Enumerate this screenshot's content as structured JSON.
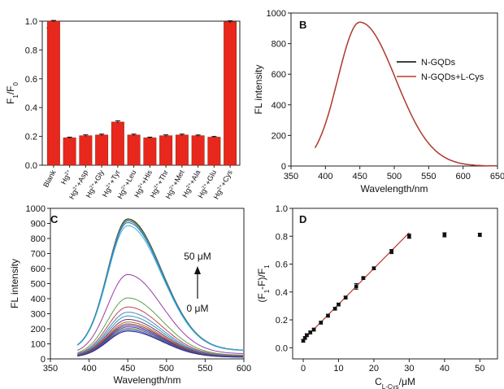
{
  "chart_data": [
    {
      "panel": "A",
      "type": "bar",
      "xlabel": "",
      "ylabel": {
        "F": "F",
        "sub1": "1",
        "slash": "/F",
        "sub2": "0"
      },
      "ylim": [
        0,
        1.0
      ],
      "yticks": [
        "0.0",
        "0.2",
        "0.4",
        "0.6",
        "0.8",
        "1.0"
      ],
      "bar_color": "#e8281c",
      "categories": [
        [
          "Blank",
          ""
        ],
        [
          "Hg",
          "2+"
        ],
        [
          "Hg",
          "2+",
          "+Asp"
        ],
        [
          "Hg",
          "2+",
          "+Gly"
        ],
        [
          "Hg",
          "2+",
          "+Tyr"
        ],
        [
          "Hg",
          "2+",
          "+Leu"
        ],
        [
          "Hg",
          "2+",
          "+His"
        ],
        [
          "Hg",
          "2+",
          "+Thr"
        ],
        [
          "Hg",
          "2+",
          "+Met"
        ],
        [
          "Hg",
          "2+",
          "+Ala"
        ],
        [
          "Hg",
          "2+",
          "+Glu"
        ],
        [
          "Hg",
          "2+",
          "+Cys"
        ]
      ],
      "values": [
        1.0,
        0.19,
        0.205,
        0.21,
        0.3,
        0.21,
        0.19,
        0.205,
        0.21,
        0.205,
        0.195,
        0.995
      ],
      "errors": [
        0.005,
        0.005,
        0.006,
        0.006,
        0.008,
        0.006,
        0.005,
        0.006,
        0.006,
        0.005,
        0.005,
        0.008
      ]
    },
    {
      "panel": "B",
      "type": "line",
      "xlabel": "Wavelength/nm",
      "ylabel": "FL intensity",
      "xlim": [
        350,
        650
      ],
      "ylim": [
        0,
        1000
      ],
      "xticks": [
        "350",
        "400",
        "450",
        "500",
        "550",
        "600",
        "650"
      ],
      "yticks": [
        "0",
        "200",
        "400",
        "600",
        "800",
        "1000"
      ],
      "series": [
        {
          "name": "N-GQDs",
          "color": "#000000",
          "peak_x": 450,
          "peak_y": 940
        },
        {
          "name": "N-GQDs+L-Cys",
          "color": "#c0392b",
          "peak_x": 450,
          "peak_y": 940
        }
      ],
      "x_start": 385
    },
    {
      "panel": "C",
      "type": "line",
      "xlabel": "Wavelength/nm",
      "ylabel": "FL intensity",
      "xlim": [
        350,
        600
      ],
      "ylim": [
        0,
        1000
      ],
      "xticks": [
        "350",
        "400",
        "450",
        "500",
        "550",
        "600"
      ],
      "yticks": [
        "0",
        "100",
        "200",
        "300",
        "400",
        "500",
        "600",
        "700",
        "800",
        "900",
        "1000"
      ],
      "annotation_top": "50 μM",
      "annotation_bottom": "0 μM",
      "peak_x": 450,
      "x_start": 385,
      "series": [
        {
          "peak": 930,
          "color": "#222222"
        },
        {
          "peak": 922,
          "color": "#7f7f2a"
        },
        {
          "peak": 915,
          "color": "#3aa0a0"
        },
        {
          "peak": 905,
          "color": "#2f6fd0"
        },
        {
          "peak": 885,
          "color": "#38b6e0"
        },
        {
          "peak": 560,
          "color": "#9a3aa8"
        },
        {
          "peak": 405,
          "color": "#5aa050"
        },
        {
          "peak": 345,
          "color": "#c04a4a"
        },
        {
          "peak": 310,
          "color": "#5a7fd0"
        },
        {
          "peak": 285,
          "color": "#2aa0a0"
        },
        {
          "peak": 262,
          "color": "#7a2a7a"
        },
        {
          "peak": 245,
          "color": "#a07030"
        },
        {
          "peak": 232,
          "color": "#b03030"
        },
        {
          "peak": 222,
          "color": "#3050b0"
        },
        {
          "peak": 212,
          "color": "#7030a0"
        },
        {
          "peak": 202,
          "color": "#2a7a5a"
        },
        {
          "peak": 192,
          "color": "#5a3ab0"
        },
        {
          "peak": 184,
          "color": "#303090"
        }
      ]
    },
    {
      "panel": "D",
      "type": "scatter",
      "xlabel": {
        "C": "C",
        "sub": "L-Cys",
        "unit": "/μM"
      },
      "ylabel": {
        "open": "(F",
        "sub1": "1",
        "mid": "-F",
        "sub2": "",
        "close": ")/F",
        "sub3": "1"
      },
      "xlim": [
        -3,
        55
      ],
      "ylim": [
        -0.08,
        1.0
      ],
      "xticks": [
        "0",
        "10",
        "20",
        "30",
        "40",
        "50"
      ],
      "yticks": [
        "0.0",
        "0.2",
        "0.4",
        "0.6",
        "0.8",
        "1.0"
      ],
      "x": [
        0.0,
        0.5,
        1.0,
        2.0,
        3.0,
        5.0,
        7.0,
        9.0,
        10.0,
        12.0,
        15.0,
        17.0,
        20.0,
        25.0,
        30.0,
        40.0,
        50.0
      ],
      "y": [
        0.05,
        0.07,
        0.09,
        0.11,
        0.13,
        0.18,
        0.23,
        0.28,
        0.31,
        0.36,
        0.44,
        0.5,
        0.57,
        0.69,
        0.8,
        0.81,
        0.81
      ],
      "yerr": [
        0.01,
        0.01,
        0.01,
        0.01,
        0.01,
        0.01,
        0.01,
        0.01,
        0.01,
        0.01,
        0.02,
        0.01,
        0.01,
        0.015,
        0.015,
        0.015,
        0.012
      ],
      "fit": {
        "x0": 0,
        "y0": 0.055,
        "x1": 30,
        "y1": 0.825,
        "color": "#c0392b"
      }
    }
  ]
}
